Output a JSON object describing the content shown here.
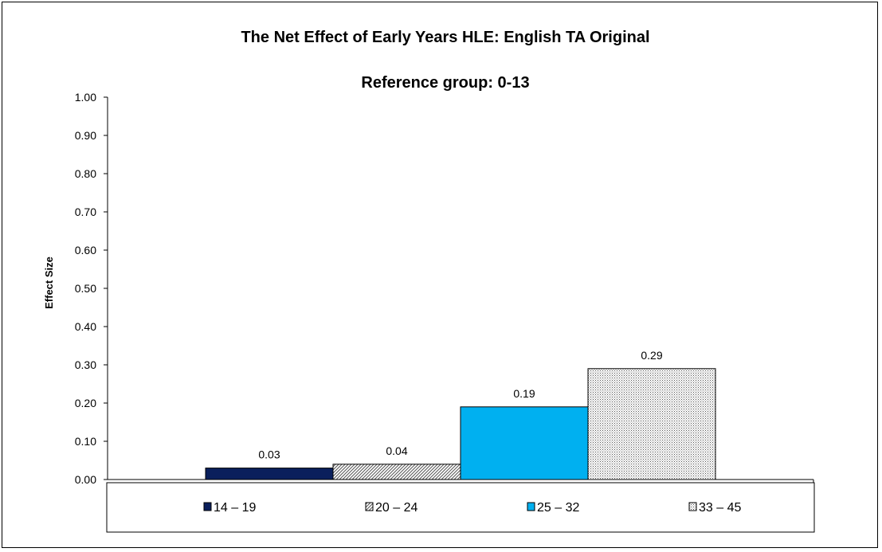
{
  "chart_data": {
    "type": "bar",
    "title": "The Net Effect of Early Years HLE: English TA Original",
    "subtitle": "Reference group: 0-13",
    "ylabel": "Effect Size",
    "xlabel": "",
    "ylim": [
      0,
      1.0
    ],
    "yticks": [
      "0.00",
      "0.10",
      "0.20",
      "0.30",
      "0.40",
      "0.50",
      "0.60",
      "0.70",
      "0.80",
      "0.90",
      "1.00"
    ],
    "grid": false,
    "legend_placement": "bottom",
    "categories": [
      "14 – 19",
      "20 – 24",
      "25 – 32",
      "33 – 45"
    ],
    "values": [
      0.03,
      0.04,
      0.19,
      0.29
    ],
    "value_labels": [
      "0.03",
      "0.04",
      "0.19",
      "0.29"
    ],
    "series_styles": [
      {
        "fill": "#0a1f5c",
        "pattern": "solid"
      },
      {
        "fill": "#ffffff",
        "pattern": "diagonal-hatch"
      },
      {
        "fill": "#00b0f0",
        "pattern": "solid"
      },
      {
        "fill": "#ffffff",
        "pattern": "dotted-grid"
      }
    ]
  }
}
